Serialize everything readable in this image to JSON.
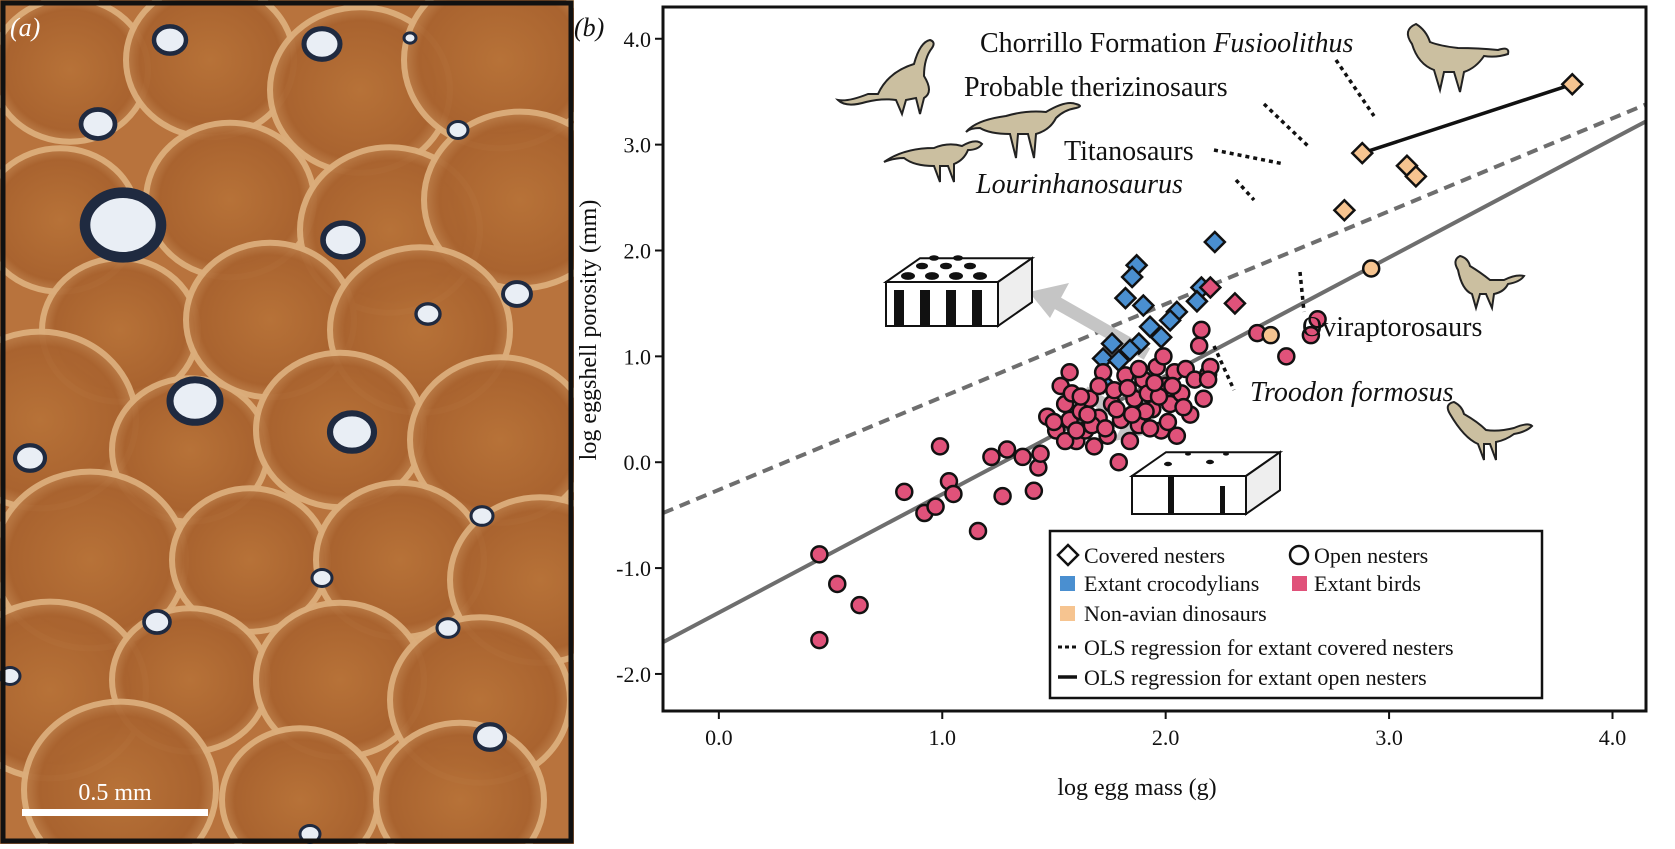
{
  "panel_a": {
    "label": "(a)",
    "scale_bar_label": "0.5 mm"
  },
  "chart_data": {
    "type": "scatter",
    "panel_label": "(b)",
    "xlabel": "log egg mass (g)",
    "ylabel": "log eggshell porosity (mm)",
    "xlim": [
      -0.25,
      4.15
    ],
    "ylim": [
      -2.35,
      4.3
    ],
    "xticks": [
      "0.0",
      "1.0",
      "2.0",
      "3.0",
      "4.0"
    ],
    "yticks": [
      "-2.0",
      "-1.0",
      "0.0",
      "1.0",
      "2.0",
      "3.0",
      "4.0"
    ],
    "xtick_values": [
      0,
      1,
      2,
      3,
      4
    ],
    "ytick_values": [
      -2,
      -1,
      0,
      1,
      2,
      3,
      4
    ],
    "colors": {
      "crocodylians": "#4a8fd0",
      "birds": "#e0527a",
      "dinosaurs": "#f6c490",
      "regression": "#6e6e6e"
    },
    "regressions": [
      {
        "name": "OLS regression for extant covered nesters",
        "style": "dashed",
        "line": [
          [
            -0.25,
            -0.48
          ],
          [
            4.15,
            3.38
          ]
        ]
      },
      {
        "name": "OLS regression for extant open nesters",
        "style": "solid",
        "line": [
          [
            -0.25,
            -1.7
          ],
          [
            4.15,
            3.22
          ]
        ]
      }
    ],
    "series": [
      {
        "name": "Extant crocodylians",
        "marker": "diamond",
        "color": "#4a8fd0",
        "points": [
          [
            2.22,
            2.08
          ],
          [
            1.87,
            1.86
          ],
          [
            1.85,
            1.75
          ],
          [
            1.82,
            1.55
          ],
          [
            1.9,
            1.48
          ],
          [
            2.16,
            1.65
          ],
          [
            2.14,
            1.52
          ],
          [
            2.05,
            1.42
          ],
          [
            2.02,
            1.34
          ],
          [
            1.93,
            1.28
          ],
          [
            1.98,
            1.18
          ],
          [
            1.88,
            1.12
          ],
          [
            1.76,
            1.12
          ],
          [
            1.84,
            1.06
          ],
          [
            1.72,
            0.98
          ],
          [
            1.79,
            0.96
          ],
          [
            1.72,
            0.75
          ]
        ]
      },
      {
        "name": "Extant birds (covered nesters)",
        "marker": "diamond",
        "color": "#e0527a",
        "points": [
          [
            2.2,
            1.65
          ],
          [
            2.31,
            1.5
          ]
        ]
      },
      {
        "name": "Extant birds",
        "marker": "circle",
        "color": "#e0527a",
        "points": [
          [
            0.45,
            -0.87
          ],
          [
            0.45,
            -1.68
          ],
          [
            0.53,
            -1.15
          ],
          [
            0.63,
            -1.35
          ],
          [
            0.83,
            -0.28
          ],
          [
            0.92,
            -0.48
          ],
          [
            0.97,
            -0.42
          ],
          [
            0.99,
            0.15
          ],
          [
            1.03,
            -0.18
          ],
          [
            1.05,
            -0.3
          ],
          [
            1.16,
            -0.65
          ],
          [
            1.22,
            0.05
          ],
          [
            1.27,
            -0.32
          ],
          [
            1.29,
            0.12
          ],
          [
            1.36,
            0.05
          ],
          [
            1.41,
            -0.27
          ],
          [
            1.43,
            -0.05
          ],
          [
            1.44,
            0.08
          ],
          [
            1.47,
            0.43
          ],
          [
            1.51,
            0.3
          ],
          [
            1.53,
            0.72
          ],
          [
            1.55,
            0.55
          ],
          [
            1.57,
            0.4
          ],
          [
            1.58,
            0.65
          ],
          [
            1.6,
            0.2
          ],
          [
            1.62,
            0.48
          ],
          [
            1.64,
            0.3
          ],
          [
            1.66,
            0.6
          ],
          [
            1.68,
            0.15
          ],
          [
            1.7,
            0.42
          ],
          [
            1.72,
            0.85
          ],
          [
            1.74,
            0.25
          ],
          [
            1.76,
            0.55
          ],
          [
            1.77,
            0.68
          ],
          [
            1.79,
            0.0
          ],
          [
            1.8,
            0.4
          ],
          [
            1.82,
            0.82
          ],
          [
            1.84,
            0.2
          ],
          [
            1.86,
            0.6
          ],
          [
            1.88,
            0.35
          ],
          [
            1.9,
            0.78
          ],
          [
            1.92,
            0.65
          ],
          [
            1.94,
            0.5
          ],
          [
            1.96,
            0.9
          ],
          [
            1.98,
            0.3
          ],
          [
            2.0,
            0.72
          ],
          [
            2.02,
            0.55
          ],
          [
            2.04,
            0.85
          ],
          [
            2.05,
            0.25
          ],
          [
            2.07,
            0.65
          ],
          [
            2.09,
            0.88
          ],
          [
            2.11,
            0.45
          ],
          [
            2.13,
            0.78
          ],
          [
            2.15,
            1.1
          ],
          [
            2.17,
            0.6
          ],
          [
            2.19,
            0.83
          ],
          [
            2.2,
            0.9
          ],
          [
            2.16,
            1.25
          ],
          [
            2.19,
            0.78
          ],
          [
            1.5,
            0.38
          ],
          [
            1.55,
            0.2
          ],
          [
            1.62,
            0.62
          ],
          [
            1.67,
            0.35
          ],
          [
            1.73,
            0.32
          ],
          [
            1.83,
            0.7
          ],
          [
            1.91,
            0.48
          ],
          [
            1.97,
            0.62
          ],
          [
            2.01,
            0.38
          ],
          [
            1.88,
            0.88
          ],
          [
            1.95,
            0.75
          ],
          [
            1.78,
            0.5
          ],
          [
            1.7,
            0.72
          ],
          [
            1.65,
            0.45
          ],
          [
            1.6,
            0.3
          ],
          [
            1.85,
            0.45
          ],
          [
            1.93,
            0.32
          ],
          [
            2.03,
            0.72
          ],
          [
            2.08,
            0.52
          ],
          [
            1.57,
            0.85
          ],
          [
            1.99,
            1.0
          ],
          [
            2.41,
            1.22
          ],
          [
            2.54,
            1.0
          ],
          [
            2.65,
            1.2
          ],
          [
            2.68,
            1.35
          ]
        ]
      },
      {
        "name": "Non-avian dinosaurs (covered nesters)",
        "marker": "diamond",
        "color": "#f6c490",
        "points": [
          [
            3.82,
            3.57
          ],
          [
            2.88,
            2.92
          ],
          [
            3.08,
            2.8
          ],
          [
            3.12,
            2.7
          ],
          [
            2.8,
            2.38
          ]
        ]
      },
      {
        "name": "Non-avian dinosaurs (open nesters)",
        "marker": "circle",
        "color": "#f6c490",
        "points": [
          [
            2.92,
            1.83
          ],
          [
            2.47,
            1.2
          ]
        ]
      }
    ],
    "segments": [
      {
        "name": "Chorrillo Formation Fusioolithus",
        "from": [
          2.88,
          2.92
        ],
        "to": [
          3.82,
          3.57
        ]
      }
    ],
    "annotations": [
      {
        "text": "Chorrillo Formation",
        "italic_part": "Fusioolithus"
      },
      {
        "text": "Probable therizinosaurs",
        "italic_part": ""
      },
      {
        "text": "Titanosaurs",
        "italic_part": ""
      },
      {
        "text": "",
        "italic_part": "Lourinhanosaurus"
      },
      {
        "text": "Oviraptorosaurs",
        "italic_part": ""
      },
      {
        "text": "",
        "italic_part": "Troodon formosus"
      }
    ],
    "legend": {
      "placement": "bottom-right",
      "items": [
        {
          "label": "Covered nesters",
          "symbol": "open-diamond"
        },
        {
          "label": "Open nesters",
          "symbol": "open-circle"
        },
        {
          "label": "Extant crocodylians",
          "symbol": "blue-square"
        },
        {
          "label": "Extant birds",
          "symbol": "pink-square"
        },
        {
          "label": "Non-avian dinosaurs",
          "symbol": "orange-square"
        },
        {
          "label": "OLS regression for extant covered nesters",
          "symbol": "dashed-line"
        },
        {
          "label": "OLS regression for extant open nesters",
          "symbol": "solid-line"
        }
      ]
    },
    "grid": false
  }
}
